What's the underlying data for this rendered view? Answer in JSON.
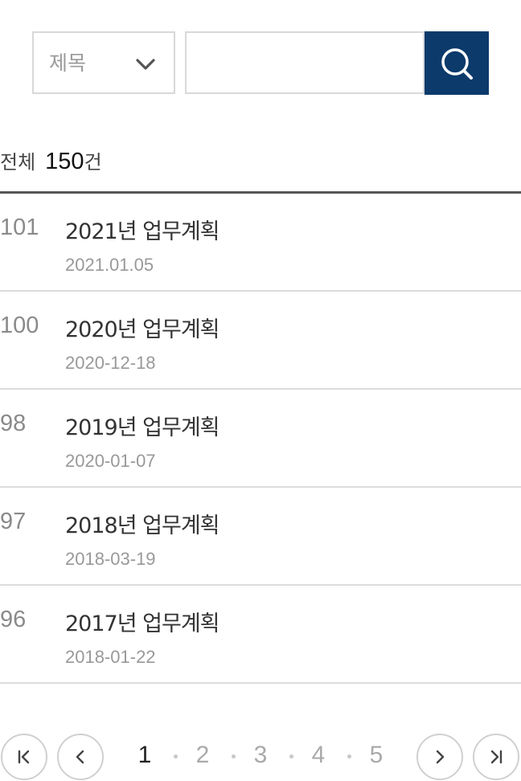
{
  "search": {
    "select_label": "제목",
    "input_value": "",
    "input_placeholder": "",
    "button_icon": "search-icon"
  },
  "summary": {
    "label": "전체",
    "count": "150",
    "unit": "건"
  },
  "posts": [
    {
      "number": "101",
      "title": "2021년 업무계획",
      "date": "2021.01.05"
    },
    {
      "number": "100",
      "title": "2020년 업무계획",
      "date": "2020-12-18"
    },
    {
      "number": "98",
      "title": "2019년 업무계획",
      "date": "2020-01-07"
    },
    {
      "number": "97",
      "title": "2018년 업무계획",
      "date": "2018-03-19"
    },
    {
      "number": "96",
      "title": "2017년 업무계획",
      "date": "2018-01-22"
    }
  ],
  "pagination": {
    "pages": [
      "1",
      "2",
      "3",
      "4",
      "5"
    ],
    "current": "1",
    "icons": {
      "first": "first-page-icon",
      "prev": "chevron-left-icon",
      "next": "chevron-right-icon",
      "last": "last-page-icon"
    }
  },
  "colors": {
    "search_button_bg": "#0b3a6b",
    "divider_dark": "#555555",
    "divider_light": "#dcdcdc"
  }
}
